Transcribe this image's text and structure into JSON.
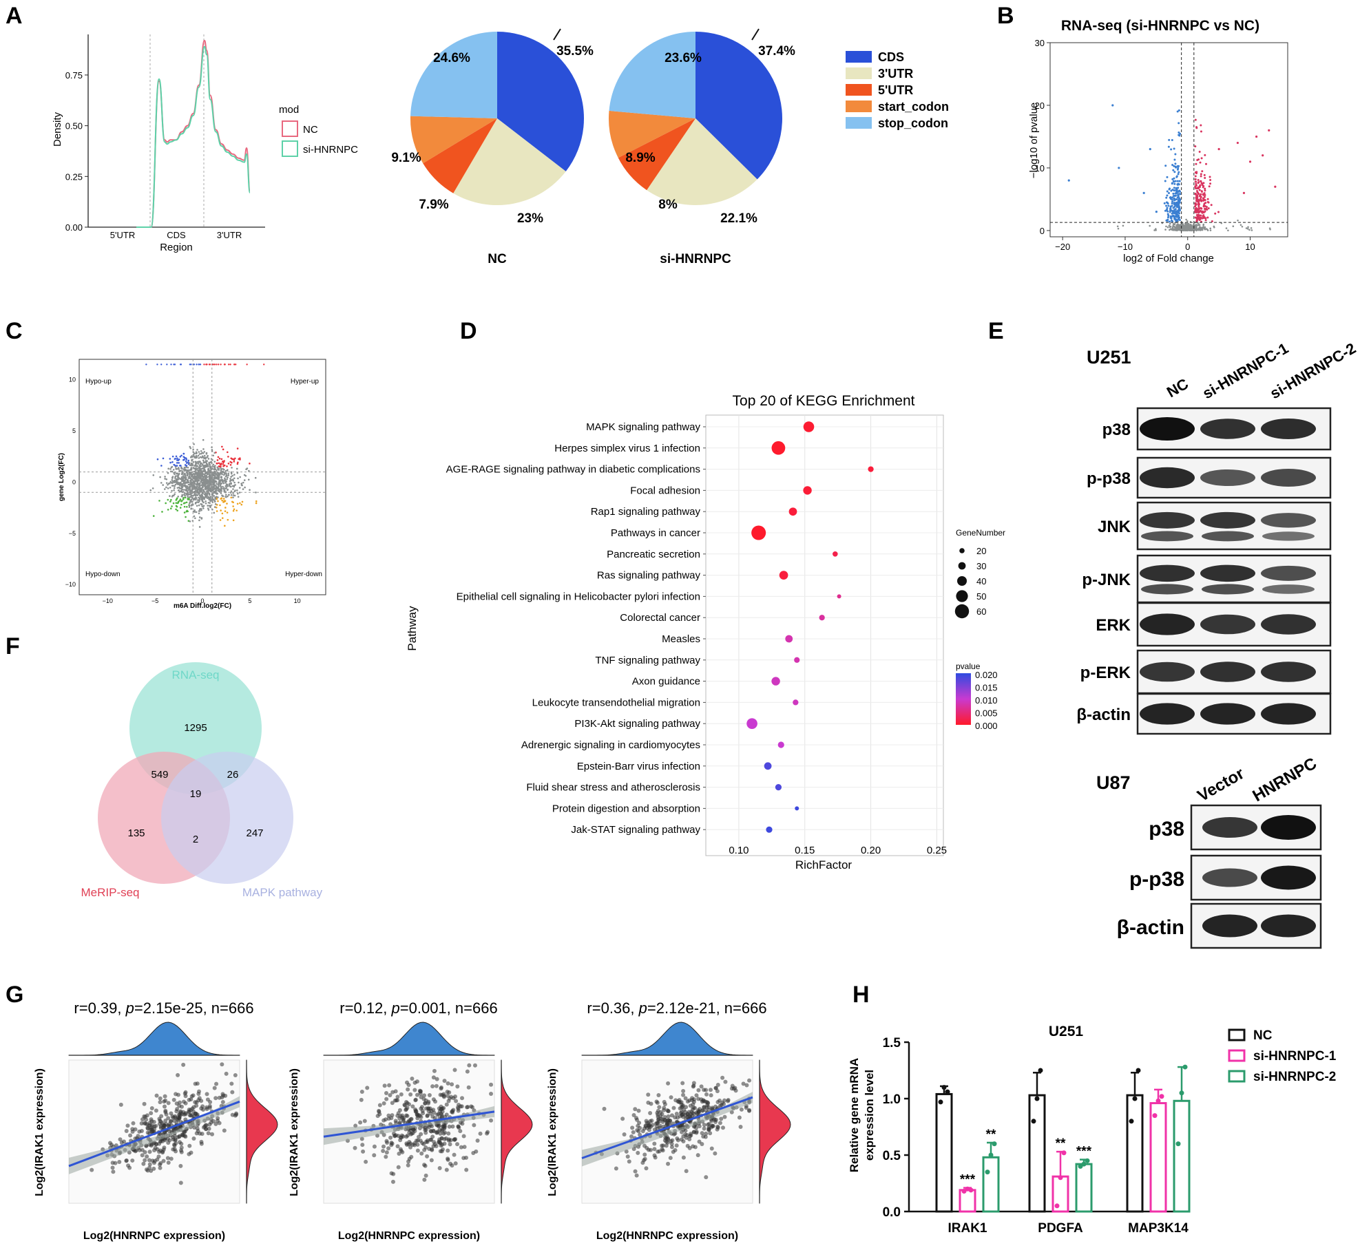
{
  "panel_letters": [
    "A",
    "B",
    "C",
    "D",
    "E",
    "F",
    "G",
    "H"
  ],
  "colors": {
    "CDS": "#2a50d8",
    "3UTR": "#e8e6c0",
    "5UTR": "#f0541f",
    "start_codon": "#f28a3c",
    "stop_codon": "#85c1f0",
    "NC": "#e8687f",
    "si_HNRNPC": "#5dd1a8",
    "up": "#d9345f",
    "down": "#3b7fd1",
    "ns": "#8a8f8f",
    "hypo_up": "#3a5cd6",
    "hyper_up": "#e8303a",
    "hypo_down": "#4db33d",
    "hyper_down": "#eda320",
    "venn_rna": "#a8e6db",
    "venn_merip": "#f0a9b8",
    "venn_mapk": "#c9cdef",
    "h_nc": "#111111",
    "h_si1": "#f032a8",
    "h_si2": "#2b9b6c",
    "density_fill": "#3f86cf",
    "density_fill2": "#e8384f",
    "fit_line": "#2f55d4"
  },
  "chart_data": [
    {
      "id": "A_density",
      "type": "line",
      "xlabel": "Region",
      "ylabel": "Density",
      "x_ticks": [
        "5'UTR",
        "CDS",
        "3'UTR"
      ],
      "y_ticks": [
        "0.00",
        "0.25",
        "0.50",
        "0.75"
      ],
      "ylim": [
        0,
        0.95
      ],
      "legend_title": "mod",
      "series": [
        {
          "name": "NC",
          "x": [
            0,
            0.13,
            0.2,
            0.25,
            0.27,
            0.3,
            0.35,
            0.4,
            0.45,
            0.5,
            0.55,
            0.6,
            0.62,
            0.65,
            0.7,
            0.75,
            0.8,
            0.85,
            0.9,
            0.95,
            0.97,
            1.0
          ],
          "y": [
            0,
            0,
            0.72,
            0.43,
            0.42,
            0.43,
            0.43,
            0.47,
            0.5,
            0.56,
            0.7,
            0.92,
            0.87,
            0.65,
            0.48,
            0.41,
            0.38,
            0.36,
            0.34,
            0.33,
            0.39,
            0.18
          ]
        },
        {
          "name": "si-HNRNPC",
          "x": [
            0,
            0.13,
            0.2,
            0.25,
            0.27,
            0.3,
            0.35,
            0.4,
            0.45,
            0.5,
            0.55,
            0.6,
            0.62,
            0.65,
            0.7,
            0.75,
            0.8,
            0.85,
            0.9,
            0.95,
            0.97,
            1.0
          ],
          "y": [
            0,
            0,
            0.73,
            0.42,
            0.41,
            0.42,
            0.43,
            0.46,
            0.49,
            0.55,
            0.69,
            0.89,
            0.85,
            0.63,
            0.47,
            0.4,
            0.37,
            0.35,
            0.33,
            0.32,
            0.36,
            0.17
          ]
        }
      ]
    },
    {
      "id": "A_pie_NC",
      "type": "pie",
      "title": "NC",
      "labels": [
        "CDS",
        "3'UTR",
        "5'UTR",
        "start_codon",
        "stop_codon"
      ],
      "values": [
        35.5,
        23,
        7.9,
        9.1,
        24.6
      ],
      "value_labels": [
        "35.5%",
        "23%",
        "7.9%",
        "9.1%",
        "24.6%"
      ]
    },
    {
      "id": "A_pie_si",
      "type": "pie",
      "title": "si-HNRNPC",
      "labels": [
        "CDS",
        "3'UTR",
        "5'UTR",
        "start_codon",
        "stop_codon"
      ],
      "values": [
        37.4,
        22.1,
        8,
        8.9,
        23.6
      ],
      "value_labels": [
        "37.4%",
        "22.1%",
        "8%",
        "8.9%",
        "23.6%"
      ]
    },
    {
      "id": "B_volcano",
      "type": "scatter",
      "title": "RNA-seq (si-HNRNPC vs NC)",
      "xlabel": "log2 of Fold change",
      "ylabel": "−10 of pvalue",
      "ylabel_full": "−log10 of pvalue",
      "x_ticks": [
        -20,
        -10,
        0,
        10
      ],
      "y_ticks": [
        0,
        10,
        20,
        30
      ],
      "xlim": [
        -22,
        16
      ],
      "ylim": [
        -1,
        30
      ]
    },
    {
      "id": "C_quadrant",
      "type": "scatter",
      "xlabel": "m6A Diff.log2(FC)",
      "ylabel": "gene Log2(FC)",
      "x_ticks": [
        -10,
        -5,
        0,
        5,
        10
      ],
      "y_ticks": [
        -10,
        -5,
        0,
        5,
        10
      ],
      "xlim": [
        -13,
        13
      ],
      "ylim": [
        -11,
        12
      ],
      "quadrant_labels": [
        "Hypo-up",
        "Hyper-up",
        "Hypo-down",
        "Hyper-down"
      ]
    },
    {
      "id": "D_kegg",
      "type": "scatter",
      "title": "Top 20 of KEGG Enrichment",
      "xlabel": "RichFactor",
      "ylabel": "Pathway",
      "x_ticks": [
        "0.10",
        "0.15",
        "0.20",
        "0.25"
      ],
      "xlim": [
        0.075,
        0.255
      ],
      "pathways": [
        "MAPK signaling pathway",
        "Herpes simplex virus 1 infection",
        "AGE-RAGE signaling pathway in diabetic complications",
        "Focal adhesion",
        "Rap1 signaling pathway",
        "Pathways in cancer",
        "Pancreatic secretion",
        "Ras signaling pathway",
        "Epithelial cell signaling in Helicobacter pylori infection",
        "Colorectal cancer",
        "Measles",
        "TNF signaling pathway",
        "Axon guidance",
        "Leukocyte transendothelial migration",
        "PI3K-Akt signaling pathway",
        "Adrenergic signaling in cardiomyocytes",
        "Epstein-Barr virus infection",
        "Fluid shear stress and atherosclerosis",
        "Protein digestion and absorption",
        "Jak-STAT signaling pathway"
      ],
      "rich_factor": [
        0.153,
        0.13,
        0.2,
        0.152,
        0.141,
        0.115,
        0.173,
        0.134,
        0.176,
        0.163,
        0.138,
        0.144,
        0.128,
        0.143,
        0.11,
        0.132,
        0.122,
        0.13,
        0.144,
        0.123
      ],
      "gene_number": [
        45,
        58,
        22,
        35,
        33,
        62,
        20,
        36,
        15,
        22,
        30,
        22,
        35,
        22,
        45,
        25,
        30,
        25,
        15,
        25
      ],
      "pvalue": [
        0.0005,
        0.0002,
        0.001,
        0.0008,
        0.001,
        0.0001,
        0.002,
        0.0012,
        0.006,
        0.007,
        0.008,
        0.008,
        0.009,
        0.009,
        0.01,
        0.01,
        0.018,
        0.018,
        0.019,
        0.019
      ],
      "size_legend_title": "GeneNumber",
      "size_legend": [
        20,
        30,
        40,
        50,
        60
      ],
      "color_legend_title": "pvalue",
      "color_legend": [
        "0.020",
        "0.015",
        "0.010",
        "0.005",
        "0.000"
      ]
    },
    {
      "id": "F_venn",
      "type": "table",
      "sets": [
        "RNA-seq",
        "MeRIP-seq",
        "MAPK pathway"
      ],
      "regions": {
        "rna_only": "1295",
        "merip_only": "135",
        "mapk_only": "247",
        "rna_merip": "549",
        "rna_mapk": "26",
        "merip_mapk": "2",
        "all": "19"
      }
    },
    {
      "id": "G_corr",
      "type": "scatter",
      "xlabel": "Log2(HNRNPC expression)",
      "ylabel": "Log2(IRAK1 expression)",
      "stats": [
        {
          "r": "r=0.39, ",
          "p_label": "p",
          "p": "=2.15e-25, n=666",
          "slope": 0.9,
          "intercept": 0.15,
          "spread": 0.11
        },
        {
          "r": "r=0.12, ",
          "p_label": "p",
          "p": "=0.001, n=666",
          "slope": 0.35,
          "intercept": 0.3,
          "spread": 0.15
        },
        {
          "r": "r=0.36, ",
          "p_label": "p",
          "p": "=2.12e-21, n=666",
          "slope": 0.85,
          "intercept": 0.2,
          "spread": 0.12
        }
      ]
    },
    {
      "id": "H_bar",
      "type": "bar",
      "title": "U251",
      "ylabel": "Relative gene mRNA expression level",
      "ylabel_lines": [
        "Relative gene  mRNA",
        "expression level"
      ],
      "categories": [
        "IRAK1",
        "PDGFA",
        "MAP3K14"
      ],
      "y_ticks": [
        "0.0",
        "0.5",
        "1.0",
        "1.5"
      ],
      "ylim": [
        0,
        1.5
      ],
      "series": [
        {
          "name": "NC",
          "values": [
            1.04,
            1.03,
            1.03
          ],
          "err": [
            0.07,
            0.2,
            0.2
          ],
          "points": [
            [
              0.97,
              1.1,
              1.06
            ],
            [
              0.8,
              1.0,
              1.25
            ],
            [
              0.8,
              1.0,
              1.25
            ]
          ],
          "sig": [
            "",
            "",
            ""
          ]
        },
        {
          "name": "si-HNRNPC-1",
          "values": [
            0.19,
            0.31,
            0.96
          ],
          "err": [
            0.02,
            0.22,
            0.12
          ],
          "points": [
            [
              0.18,
              0.2,
              0.19
            ],
            [
              0.05,
              0.3,
              0.52
            ],
            [
              0.85,
              0.98,
              1.02
            ]
          ],
          "sig": [
            "***",
            "**",
            ""
          ]
        },
        {
          "name": "si-HNRNPC-2",
          "values": [
            0.48,
            0.42,
            0.98
          ],
          "err": [
            0.13,
            0.04,
            0.3
          ],
          "points": [
            [
              0.35,
              0.5,
              0.6
            ],
            [
              0.4,
              0.42,
              0.45
            ],
            [
              0.6,
              1.05,
              1.28
            ]
          ],
          "sig": [
            "**",
            "***",
            ""
          ]
        }
      ]
    }
  ],
  "western_blot": {
    "u251": {
      "cell_line": "U251",
      "lanes": [
        "NC",
        "si-HNRNPC-1",
        "si-HNRNPC-2"
      ],
      "rows": [
        {
          "label": "p38",
          "int": [
            1.0,
            0.75,
            0.78
          ],
          "double": false
        },
        {
          "label": "p-p38",
          "int": [
            0.8,
            0.45,
            0.55
          ],
          "double": false
        },
        {
          "label": "JNK",
          "int": [
            0.8,
            0.8,
            0.55
          ],
          "double": true
        },
        {
          "label": "p-JNK",
          "int": [
            0.85,
            0.85,
            0.6
          ],
          "double": true
        },
        {
          "label": "ERK",
          "int": [
            0.85,
            0.7,
            0.75
          ],
          "double": false
        },
        {
          "label": "p-ERK",
          "int": [
            0.7,
            0.75,
            0.75
          ],
          "double": false
        },
        {
          "label": "β-actin",
          "int": [
            0.85,
            0.85,
            0.85
          ],
          "double": false
        }
      ]
    },
    "u87": {
      "cell_line": "U87",
      "lanes": [
        "Vector",
        "HNRNPC"
      ],
      "rows": [
        {
          "label": "p38",
          "int": [
            0.7,
            1.0
          ]
        },
        {
          "label": "p-p38",
          "int": [
            0.55,
            0.95
          ]
        },
        {
          "label": "β-actin",
          "int": [
            0.85,
            0.85
          ]
        }
      ]
    }
  }
}
